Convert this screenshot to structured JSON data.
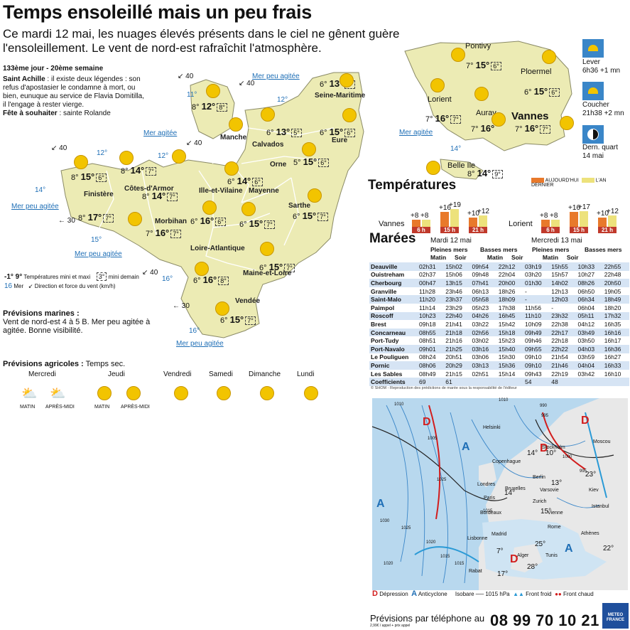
{
  "header": {
    "title": "Temps ensoleillé mais un peu frais",
    "subtitle": "Ce mardi 12 mai, les nuages élevés présents dans le ciel ne gênent guère l'ensoleillement. Le vent de nord-est rafraîchit l'atmosphère."
  },
  "info": {
    "day": "133ème jour - 20ème semaine",
    "saint_label": "Saint Achille",
    "saint_text": " : il existe deux légendes : son refus d'apostasier le condamne à mort, ou bien, eunuque au service de Flavia Domitilla, il l'engage à rester vierge.",
    "fete_label": "Fête à souhaiter",
    "fete_text": " :  sainte Rolande"
  },
  "map_departments": [
    {
      "name": "Seine-Maritime",
      "min": "6°",
      "max": "13°",
      "next": "6°"
    },
    {
      "name": "Manche",
      "min": "8°",
      "max": "12°",
      "next": "8°"
    },
    {
      "name": "Calvados",
      "min": "6°",
      "max": "13°",
      "next": "5°"
    },
    {
      "name": "Eure",
      "min": "6°",
      "max": "15°",
      "next": "6°"
    },
    {
      "name": "Orne",
      "min": "5°",
      "max": "15°",
      "next": "6°"
    },
    {
      "name": "Finistère",
      "min": "8°",
      "max": "15°",
      "next": "6°"
    },
    {
      "name": "Côtes-d'Armor",
      "min": "8°",
      "max": "14°",
      "next": "7°"
    },
    {
      "name": "Ille-et-Vilaine",
      "min": "8°",
      "max": "14°",
      "next": "7°"
    },
    {
      "name": "Mayenne",
      "min": "6°",
      "max": "14°",
      "next": "6°"
    },
    {
      "name": "Sarthe",
      "min": "6°",
      "max": "15°",
      "next": "7°"
    },
    {
      "name": "Morbihan",
      "min": "7°",
      "max": "16°",
      "next": "7°"
    },
    {
      "name": "Loire-Atlantique",
      "min": "6°",
      "max": "16°",
      "next": "6°"
    },
    {
      "name": "Maine-et-Loire",
      "min": "6°",
      "max": "15°",
      "next": "7°"
    },
    {
      "name": "Vendée",
      "min": "6°",
      "max": "15°",
      "next": "7°"
    },
    {
      "name": "",
      "min": "8°",
      "max": "17°",
      "next": "7°"
    },
    {
      "name": "",
      "min": "6°",
      "max": "16°",
      "next": "8°"
    }
  ],
  "seas": {
    "sea1": "Mer peu agitée",
    "sea2": "Mer agitée",
    "sea3": "Mer agitée",
    "sea4": "Mer peu agitée",
    "sea5": "Mer peu agitée",
    "sea6": "Mer peu agitée"
  },
  "sea_temps": [
    "11°",
    "12°",
    "12°",
    "12°",
    "14°",
    "15°",
    "16°",
    "16°"
  ],
  "winds": [
    "40",
    "40",
    "40",
    "40",
    "30",
    "40",
    "30"
  ],
  "legend": {
    "temp_label": "Températures mini et maxi",
    "temp_example": "-1° 9°",
    "mini_demain": "mini demain",
    "box": "3°",
    "mer_label": "Mer",
    "mer_example": "16",
    "wind_label": "Direction et force du vent (km/h)"
  },
  "marine": {
    "title": "Prévisions marines :",
    "text": "Vent de nord-est 4 à 5 B. Mer peu agitée à agitée. Bonne visibilité."
  },
  "agri": {
    "title": "Prévisions agricoles :",
    "text": " Temps sec.",
    "days": [
      "Mercredi",
      "Jeudi",
      "Vendredi",
      "Samedi",
      "Dimanche",
      "Lundi"
    ],
    "matin": "MATIN",
    "apres": "APRÈS-MIDI"
  },
  "morbihan": {
    "cities": [
      {
        "name": "Pontivy",
        "min": "7°",
        "max": "15°",
        "next": "6°"
      },
      {
        "name": "Ploermel",
        "min": "6°",
        "max": "15°",
        "next": "6°"
      },
      {
        "name": "Lorient",
        "min": "7°",
        "max": "16°",
        "next": "7°"
      },
      {
        "name": "Auray",
        "min": "7°",
        "max": "16°",
        "next": ""
      },
      {
        "name": "Vannes",
        "min": "7°",
        "max": "16°",
        "next": "7°"
      },
      {
        "name": "Belle Ile",
        "min": "8°",
        "max": "14°",
        "next": "9°"
      }
    ],
    "seas": "Mer peu agitée",
    "seatemp": "14°"
  },
  "astro": {
    "lever": "Lever",
    "lever_time": "6h36 +1 mn",
    "coucher": "Coucher",
    "coucher_time": "21h38 +2 mn",
    "lune": "Dern. quart",
    "lune_date": "14 mai"
  },
  "temperatures": {
    "title": "Températures",
    "legend_today": "AUJOURD'HUI",
    "legend_last": "L'AN DERNIER",
    "colors": {
      "today": "#e8792b",
      "last": "#ede27c"
    },
    "hours": [
      "6 h",
      "15 h",
      "21 h"
    ],
    "vannes": {
      "name": "Vannes",
      "today": [
        8,
        16,
        10
      ],
      "last": [
        8,
        19,
        12
      ],
      "labels": [
        "+8",
        "+8",
        "+16",
        "+19",
        "+10",
        "+12"
      ]
    },
    "lorient": {
      "name": "Lorient",
      "today": [
        8,
        16,
        10
      ],
      "last": [
        8,
        17,
        12
      ],
      "labels": [
        "+8",
        "+8",
        "+16",
        "+17",
        "+10",
        "+12"
      ]
    }
  },
  "tides": {
    "title": "Marées",
    "day1": "Mardi 12 mai",
    "day2": "Mercredi 13 mai",
    "pleines": "Pleines mers",
    "basses": "Basses mers",
    "matin": "Matin",
    "soir": "Soir",
    "rows": [
      [
        "Deauville",
        "02h31",
        "15h02",
        "09h54",
        "22h12",
        "03h19",
        "15h55",
        "10h33",
        "22h55"
      ],
      [
        "Ouistreham",
        "02h37",
        "15h06",
        "09h48",
        "22h04",
        "03h20",
        "15h57",
        "10h27",
        "22h48"
      ],
      [
        "Cherbourg",
        "00h47",
        "13h15",
        "07h41",
        "20h00",
        "01h30",
        "14h02",
        "08h26",
        "20h50"
      ],
      [
        "Granville",
        "11h28",
        "23h46",
        "06h13",
        "18h26",
        "-",
        "12h13",
        "06h50",
        "19h05"
      ],
      [
        "Saint-Malo",
        "11h20",
        "23h37",
        "05h58",
        "18h09",
        "-",
        "12h03",
        "06h34",
        "18h49"
      ],
      [
        "Paimpol",
        "11h14",
        "23h29",
        "05h23",
        "17h38",
        "11h56",
        "-",
        "06h04",
        "18h20"
      ],
      [
        "Roscoff",
        "10h23",
        "22h40",
        "04h26",
        "16h45",
        "11h10",
        "23h32",
        "05h11",
        "17h32"
      ],
      [
        "Brest",
        "09h18",
        "21h41",
        "03h22",
        "15h42",
        "10h09",
        "22h38",
        "04h12",
        "16h35"
      ],
      [
        "Concarneau",
        "08h55",
        "21h18",
        "02h56",
        "15h18",
        "09h49",
        "22h17",
        "03h49",
        "16h16"
      ],
      [
        "Port-Tudy",
        "08h51",
        "21h16",
        "03h02",
        "15h23",
        "09h46",
        "22h18",
        "03h50",
        "16h17"
      ],
      [
        "Port-Navalo",
        "09h01",
        "21h25",
        "03h16",
        "15h40",
        "09h55",
        "22h22",
        "04h03",
        "16h36"
      ],
      [
        "Le Pouliguen",
        "08h24",
        "20h51",
        "03h06",
        "15h30",
        "09h10",
        "21h54",
        "03h59",
        "16h27"
      ],
      [
        "Pornic",
        "08h06",
        "20h29",
        "03h13",
        "15h36",
        "09h10",
        "21h46",
        "04h04",
        "16h33"
      ],
      [
        "Les Sables",
        "08h49",
        "21h15",
        "02h51",
        "15h14",
        "09h43",
        "22h19",
        "03h42",
        "16h10"
      ],
      [
        "Coefficients",
        "69",
        "61",
        "",
        "",
        "54",
        "48",
        "",
        ""
      ]
    ],
    "shom": "© SHOM - Reproduction des prédictions de marée sous la responsabilité de l'éditeur"
  },
  "europe": {
    "labels": [
      "Helsinki",
      "Moscou",
      "Copenhague",
      "Stockholm",
      "Berlin",
      "Varsovie",
      "Londres",
      "Bruxelles",
      "Paris",
      "Vienne",
      "Kiev",
      "Bordeaux",
      "Zurich",
      "Rome",
      "Istanbul",
      "Madrid",
      "Lisbonne",
      "Rabat",
      "Alger",
      "Tunis",
      "Athènes"
    ],
    "temps": [
      "7°",
      "13°",
      "14°",
      "15°",
      "25°",
      "22°",
      "17°",
      "28°",
      "23°",
      "10°",
      "14°"
    ],
    "isobars": [
      "1010",
      "990",
      "995",
      "1005",
      "1000",
      "995",
      "1025",
      "1020",
      "1010",
      "1030",
      "1025",
      "1020",
      "1015",
      "1015",
      "1015"
    ],
    "legend": {
      "depression": "Dépression",
      "anticyclone": "Anticyclone",
      "isobare": "Isobare",
      "isobare_val": "1015 hPa",
      "front_froid": "Front froid",
      "front_chaud": "Front chaud"
    }
  },
  "footer": {
    "label": "Prévisions par téléphone au",
    "phone": "08 99 70 10 21",
    "price": "2,99€ / appel + prix appel",
    "brand1": "METEO",
    "brand2": "FRANCE"
  }
}
